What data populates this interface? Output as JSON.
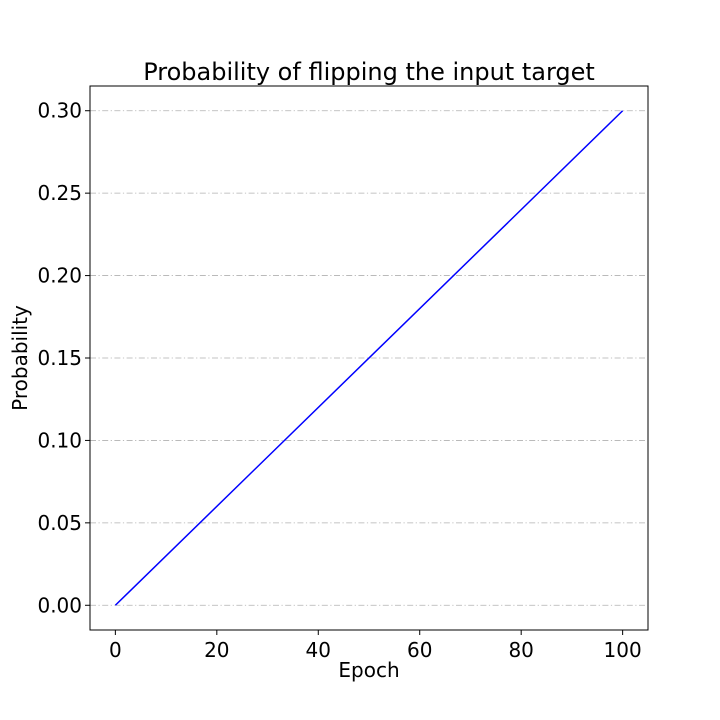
{
  "chart_data": {
    "type": "line",
    "title": "Probability of flipping the input target",
    "xlabel": "Epoch",
    "ylabel": "Probability",
    "xlim": [
      -5,
      105
    ],
    "ylim": [
      -0.015,
      0.315
    ],
    "xticks": [
      0,
      20,
      40,
      60,
      80,
      100
    ],
    "xtick_labels": [
      "0",
      "20",
      "40",
      "60",
      "80",
      "100"
    ],
    "yticks": [
      0.0,
      0.05,
      0.1,
      0.15,
      0.2,
      0.25,
      0.3
    ],
    "ytick_labels": [
      "0.00",
      "0.05",
      "0.10",
      "0.15",
      "0.20",
      "0.25",
      "0.30"
    ],
    "grid": "horizontal dash-dot",
    "series": [
      {
        "x": [
          0,
          100
        ],
        "y": [
          0.0,
          0.3
        ],
        "color": "#0000ff"
      }
    ]
  }
}
